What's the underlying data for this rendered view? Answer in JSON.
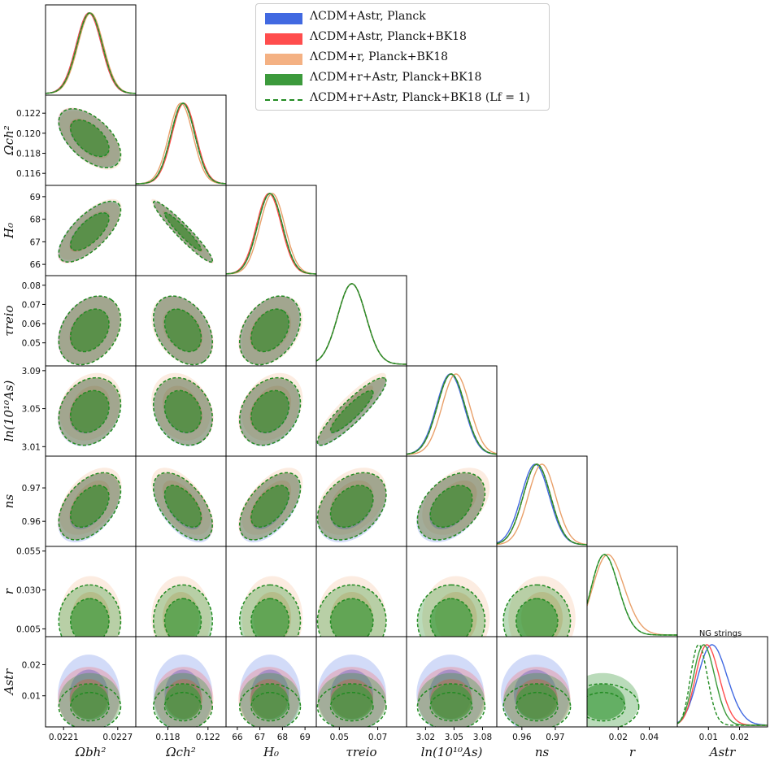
{
  "chart_data": {
    "type": "triangle-corner-plot",
    "parameters": [
      {
        "key": "omega_b",
        "label": "Ωbh²",
        "range": [
          0.0219,
          0.0229
        ],
        "ticks": [
          0.0221,
          0.0227
        ],
        "tick_labels": [
          "0.0221",
          "0.0227"
        ]
      },
      {
        "key": "omega_c",
        "label": "Ωch²",
        "range": [
          0.1148,
          0.1238
        ],
        "ticks": [
          0.116,
          0.118,
          0.12,
          0.122
        ],
        "tick_labels": [
          "0.116",
          "0.118",
          "0.120",
          "0.122"
        ]
      },
      {
        "key": "H0",
        "label": "H₀",
        "range": [
          65.5,
          69.5
        ],
        "ticks": [
          66,
          67,
          68,
          69
        ],
        "tick_labels": [
          "66",
          "67",
          "68",
          "69"
        ]
      },
      {
        "key": "tau_reio",
        "label": "τreio",
        "range": [
          0.038,
          0.085
        ],
        "ticks": [
          0.05,
          0.06,
          0.07,
          0.08
        ],
        "tick_labels": [
          "0.05",
          "0.06",
          "0.07",
          "0.08"
        ]
      },
      {
        "key": "lnAs",
        "label": "ln(10¹⁰As)",
        "range": [
          3.0,
          3.095
        ],
        "ticks": [
          3.01,
          3.02,
          3.05,
          3.08,
          3.09
        ],
        "tick_labels": [
          "3.01",
          "3.02",
          "3.05",
          "3.08",
          "3.09"
        ]
      },
      {
        "key": "ns",
        "label": "ns",
        "range": [
          0.9525,
          0.9795
        ],
        "ticks": [
          0.96,
          0.97
        ],
        "tick_labels": [
          "0.96",
          "0.97"
        ]
      },
      {
        "key": "r",
        "label": "r",
        "range": [
          0.0,
          0.058
        ],
        "ticks": [
          0.005,
          0.02,
          0.03,
          0.04,
          0.055
        ],
        "tick_labels": [
          "0.005",
          "0.02",
          "0.030",
          "0.04",
          "0.055"
        ]
      },
      {
        "key": "Astr",
        "label": "Astr",
        "range": [
          0.0,
          0.029
        ],
        "ticks": [
          0.01,
          0.02
        ],
        "tick_labels": [
          "0.01",
          "0.02"
        ]
      }
    ],
    "left_axis_ticks": {
      "omega_c": [
        "0.116",
        "0.118",
        "0.120",
        "0.122"
      ],
      "H0": [
        "66",
        "67",
        "68",
        "69"
      ],
      "tau_reio": [
        "0.05",
        "0.06",
        "0.07",
        "0.08"
      ],
      "lnAs": [
        "3.01",
        "3.05",
        "3.09"
      ],
      "ns": [
        "0.96",
        "0.97"
      ],
      "r": [
        "0.005",
        "0.030",
        "0.055"
      ],
      "Astr": [
        "0.01",
        "0.02"
      ]
    },
    "bottom_axis_ticks": {
      "omega_b": [
        "0.0221",
        "0.0227"
      ],
      "omega_c": [
        "0.118",
        "0.122"
      ],
      "H0": [
        "66",
        "67",
        "68",
        "69"
      ],
      "tau_reio": [
        "0.05",
        "0.07"
      ],
      "lnAs": [
        "3.02",
        "3.05",
        "3.08"
      ],
      "ns": [
        "0.96",
        "0.97"
      ],
      "r": [
        "0.02",
        "0.04"
      ],
      "Astr": [
        "0.01",
        "0.02"
      ]
    },
    "series": [
      {
        "name": "ΛCDM+Astr, Planck",
        "color": "#4169e1",
        "style": "filled",
        "means": {
          "omega_b": 0.02238,
          "omega_c": 0.1195,
          "H0": 67.45,
          "tau_reio": 0.0565,
          "lnAs": 3.046,
          "ns": 0.964,
          "r": null,
          "Astr": 0.0105
        },
        "sigmas": {
          "omega_b": 0.00014,
          "omega_c": 0.0012,
          "H0": 0.55,
          "tau_reio": 0.0073,
          "lnAs": 0.0145,
          "ns": 0.0042,
          "r": null,
          "Astr": 0.0052
        }
      },
      {
        "name": "ΛCDM+Astr, Planck+BK18",
        "color": "#ff4d4d",
        "style": "filled",
        "means": {
          "omega_b": 0.02238,
          "omega_c": 0.1196,
          "H0": 67.4,
          "tau_reio": 0.0565,
          "lnAs": 3.047,
          "ns": 0.9645,
          "r": null,
          "Astr": 0.009
        },
        "sigmas": {
          "omega_b": 0.00014,
          "omega_c": 0.0012,
          "H0": 0.55,
          "tau_reio": 0.0073,
          "lnAs": 0.0145,
          "ns": 0.0041,
          "r": null,
          "Astr": 0.0042
        }
      },
      {
        "name": "ΛCDM+r, Planck+BK18",
        "color": "#f4b183",
        "style": "filled",
        "means": {
          "omega_b": 0.0224,
          "omega_c": 0.1193,
          "H0": 67.55,
          "tau_reio": 0.0565,
          "lnAs": 3.052,
          "ns": 0.966,
          "r": 0.012,
          "Astr": null
        },
        "sigmas": {
          "omega_b": 0.00014,
          "omega_c": 0.0012,
          "H0": 0.55,
          "tau_reio": 0.0073,
          "lnAs": 0.0145,
          "ns": 0.0041,
          "r": 0.011,
          "Astr": null
        }
      },
      {
        "name": "ΛCDM+r+Astr, Planck+BK18",
        "color": "#3c9a3c",
        "style": "filled",
        "means": {
          "omega_b": 0.02239,
          "omega_c": 0.1195,
          "H0": 67.45,
          "tau_reio": 0.0565,
          "lnAs": 3.047,
          "ns": 0.9645,
          "r": 0.01,
          "Astr": 0.008
        },
        "sigmas": {
          "omega_b": 0.00014,
          "omega_c": 0.0012,
          "H0": 0.55,
          "tau_reio": 0.0073,
          "lnAs": 0.0145,
          "ns": 0.0041,
          "r": 0.0095,
          "Astr": 0.0038
        }
      },
      {
        "name": "ΛCDM+r+Astr, Planck+BK18 (Lf = 1)",
        "color": "#228b22",
        "style": "dashed",
        "means": {
          "omega_b": 0.02239,
          "omega_c": 0.1195,
          "H0": 67.45,
          "tau_reio": 0.0565,
          "lnAs": 3.047,
          "ns": 0.9645,
          "r": 0.01,
          "Astr": 0.0065
        },
        "sigmas": {
          "omega_b": 0.00014,
          "omega_c": 0.0012,
          "H0": 0.55,
          "tau_reio": 0.0073,
          "lnAs": 0.0145,
          "ns": 0.0041,
          "r": 0.0095,
          "Astr": 0.003
        }
      }
    ],
    "correlations": [
      [
        "omega_b",
        "omega_c",
        -0.55
      ],
      [
        "omega_b",
        "H0",
        0.7
      ],
      [
        "omega_b",
        "tau_reio",
        0.3
      ],
      [
        "omega_b",
        "lnAs",
        0.2
      ],
      [
        "omega_b",
        "ns",
        0.45
      ],
      [
        "omega_c",
        "H0",
        -0.95
      ],
      [
        "omega_c",
        "tau_reio",
        -0.35
      ],
      [
        "omega_c",
        "lnAs",
        -0.2
      ],
      [
        "omega_c",
        "ns",
        -0.55
      ],
      [
        "H0",
        "tau_reio",
        0.35
      ],
      [
        "H0",
        "lnAs",
        0.25
      ],
      [
        "H0",
        "ns",
        0.55
      ],
      [
        "tau_reio",
        "lnAs",
        0.9
      ],
      [
        "tau_reio",
        "ns",
        0.35
      ],
      [
        "lnAs",
        "ns",
        0.4
      ]
    ],
    "legend_position": "top-right",
    "astr_title": "NG strings"
  },
  "legend": [
    {
      "text": "ΛCDM+Astr, Planck",
      "color": "#4169e1",
      "style": "filled"
    },
    {
      "text": "ΛCDM+Astr, Planck+BK18",
      "color": "#ff4d4d",
      "style": "filled"
    },
    {
      "text": "ΛCDM+r, Planck+BK18",
      "color": "#f4b183",
      "style": "filled"
    },
    {
      "text": "ΛCDM+r+Astr, Planck+BK18",
      "color": "#3c9a3c",
      "style": "filled"
    },
    {
      "text": "ΛCDM+r+Astr, Planck+BK18 (Lf = 1)",
      "color": "#228b22",
      "style": "dashed"
    }
  ]
}
